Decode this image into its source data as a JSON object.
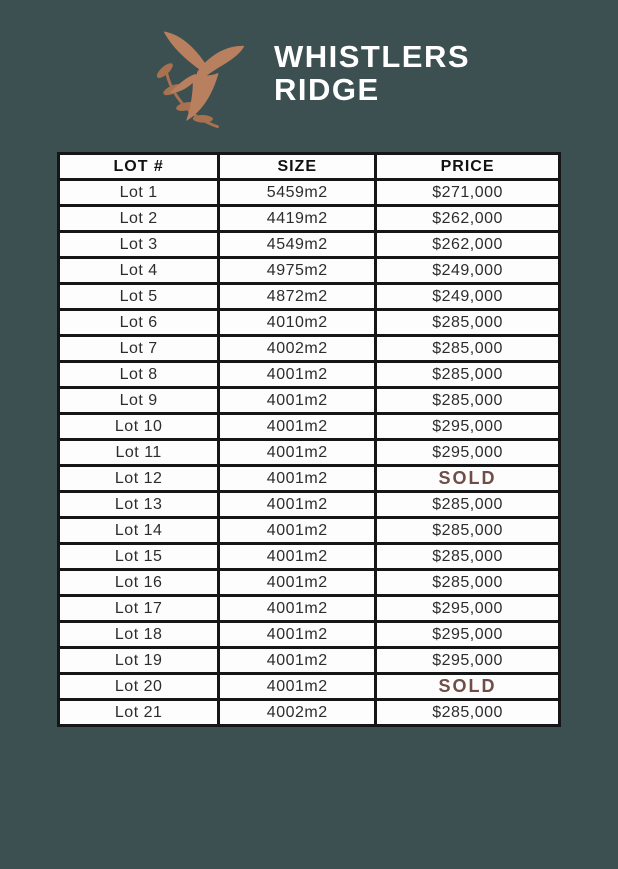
{
  "colors": {
    "background": "#3c5052",
    "cell_background": "#fdfdfd",
    "table_border": "#161616",
    "text_dark": "#2d2d2d",
    "sold": "#6e4e46",
    "logo_text": "#ffffff",
    "bird_copper": "#b8805f",
    "branch": "#a8714f"
  },
  "logo": {
    "brand_line1": "WHISTLERS",
    "brand_line2": "RIDGE",
    "icon": "bird-with-branch-icon"
  },
  "table": {
    "headers": [
      "LOT #",
      "SIZE",
      "PRICE"
    ],
    "sold_label": "SOLD",
    "rows": [
      {
        "lot": "Lot 1",
        "size": "5459m2",
        "price": "$271,000",
        "sold": false
      },
      {
        "lot": "Lot 2",
        "size": "4419m2",
        "price": "$262,000",
        "sold": false
      },
      {
        "lot": "Lot 3",
        "size": "4549m2",
        "price": "$262,000",
        "sold": false
      },
      {
        "lot": "Lot 4",
        "size": "4975m2",
        "price": "$249,000",
        "sold": false
      },
      {
        "lot": "Lot 5",
        "size": "4872m2",
        "price": "$249,000",
        "sold": false
      },
      {
        "lot": "Lot 6",
        "size": "4010m2",
        "price": "$285,000",
        "sold": false
      },
      {
        "lot": "Lot 7",
        "size": "4002m2",
        "price": "$285,000",
        "sold": false
      },
      {
        "lot": "Lot 8",
        "size": "4001m2",
        "price": "$285,000",
        "sold": false
      },
      {
        "lot": "Lot 9",
        "size": "4001m2",
        "price": "$285,000",
        "sold": false
      },
      {
        "lot": "Lot 10",
        "size": "4001m2",
        "price": "$295,000",
        "sold": false
      },
      {
        "lot": "Lot 11",
        "size": "4001m2",
        "price": "$295,000",
        "sold": false
      },
      {
        "lot": "Lot 12",
        "size": "4001m2",
        "price": "SOLD",
        "sold": true
      },
      {
        "lot": "Lot 13",
        "size": "4001m2",
        "price": "$285,000",
        "sold": false
      },
      {
        "lot": "Lot 14",
        "size": "4001m2",
        "price": "$285,000",
        "sold": false
      },
      {
        "lot": "Lot 15",
        "size": "4001m2",
        "price": "$285,000",
        "sold": false
      },
      {
        "lot": "Lot 16",
        "size": "4001m2",
        "price": "$285,000",
        "sold": false
      },
      {
        "lot": "Lot 17",
        "size": "4001m2",
        "price": "$295,000",
        "sold": false
      },
      {
        "lot": "Lot 18",
        "size": "4001m2",
        "price": "$295,000",
        "sold": false
      },
      {
        "lot": "Lot 19",
        "size": "4001m2",
        "price": "$295,000",
        "sold": false
      },
      {
        "lot": "Lot 20",
        "size": "4001m2",
        "price": "SOLD",
        "sold": true
      },
      {
        "lot": "Lot 21",
        "size": "4002m2",
        "price": "$285,000",
        "sold": false
      }
    ]
  }
}
